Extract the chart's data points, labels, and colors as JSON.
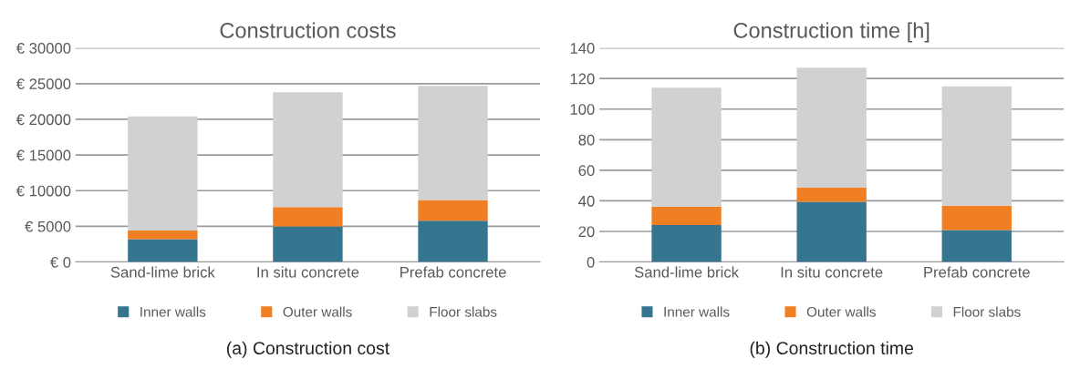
{
  "chart_data": [
    {
      "type": "bar",
      "title": "Construction costs",
      "categories": [
        "Sand-lime brick",
        "In situ concrete",
        "Prefab concrete"
      ],
      "stacked": true,
      "series": [
        {
          "name": "Inner walls",
          "color": "#36758f",
          "values": [
            3200,
            5000,
            5800
          ]
        },
        {
          "name": "Outer walls",
          "color": "#f07f24",
          "values": [
            1200,
            2700,
            2900
          ]
        },
        {
          "name": "Floor slabs",
          "color": "#d0d1d3",
          "values": [
            16000,
            16100,
            16000
          ]
        }
      ],
      "ylim": [
        0,
        30000
      ],
      "yticks": [
        {
          "value": 0,
          "label": "€ 0"
        },
        {
          "value": 5000,
          "label": "€ 5000"
        },
        {
          "value": 10000,
          "label": "€ 10000"
        },
        {
          "value": 15000,
          "label": "€ 15000"
        },
        {
          "value": 20000,
          "label": "€ 20000"
        },
        {
          "value": 25000,
          "label": "€ 25000"
        },
        {
          "value": 30000,
          "label": "€ 30000"
        }
      ],
      "grid": "y",
      "legend": "bottom",
      "annotations": [
        "(a) Construction cost"
      ]
    },
    {
      "type": "bar",
      "title": "Construction time [h]",
      "categories": [
        "Sand-lime brick",
        "In situ concrete",
        "Prefab concrete"
      ],
      "stacked": true,
      "series": [
        {
          "name": "Inner walls",
          "color": "#36758f",
          "values": [
            24.2,
            39.3,
            20.9
          ]
        },
        {
          "name": "Outer walls",
          "color": "#f07f24",
          "values": [
            12,
            9.5,
            15.9
          ]
        },
        {
          "name": "Floor slabs",
          "color": "#d0d1d3",
          "values": [
            77.8,
            78.3,
            78.1
          ]
        }
      ],
      "ylim": [
        0,
        140
      ],
      "yticks": [
        0,
        20,
        40,
        60,
        80,
        100,
        120,
        140
      ],
      "grid": "y",
      "legend": "bottom",
      "annotations": [
        "(b) Construction time"
      ]
    }
  ]
}
